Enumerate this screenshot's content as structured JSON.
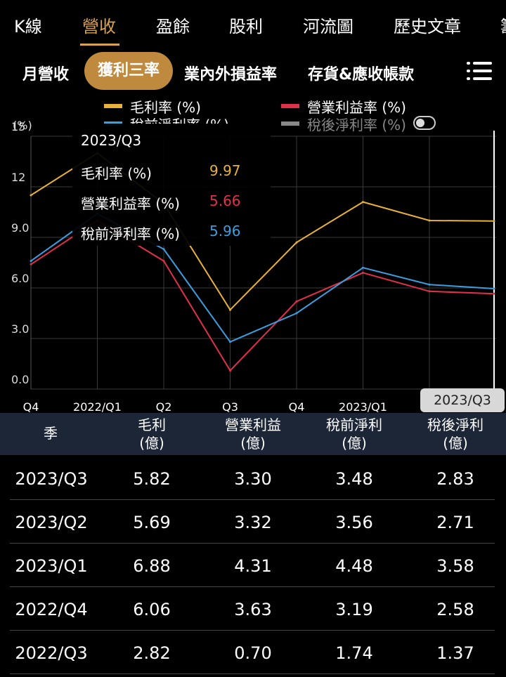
{
  "top_tabs": [
    "K線",
    "營收",
    "盈餘",
    "股利",
    "河流圖",
    "歷史文章",
    "籌"
  ],
  "top_active": "營收",
  "sub_tabs": [
    "月營收",
    "獲利三率",
    "業內外損益率",
    "存貨&應收帳款"
  ],
  "sub_active": "獲利三率",
  "legend": [
    {
      "label": "毛利率 (%)",
      "color": "#e8b23a"
    },
    {
      "label": "營業利益率 (%)",
      "color": "#e0304a"
    },
    {
      "label": "稅前淨利率 (%)",
      "color": "#3b9ee0"
    },
    {
      "label": "稅後淨利率 (%)",
      "color": "#888888"
    }
  ],
  "chart_data": {
    "type": "line",
    "ylabel": "(%)",
    "ylim": [
      0,
      15
    ],
    "yticks": [
      "0.0",
      "3.0",
      "6.0",
      "9.0",
      "12",
      "15"
    ],
    "x_labels": [
      "Q4",
      "2022/Q1",
      "Q2",
      "Q3",
      "Q4",
      "2023/Q1",
      "Q2"
    ],
    "categories": [
      "2021/Q4",
      "2022/Q1",
      "2022/Q2",
      "2022/Q3",
      "2022/Q4",
      "2023/Q1",
      "2023/Q2",
      "2023/Q3"
    ],
    "series": [
      {
        "name": "毛利率 (%)",
        "color": "#e8b23a",
        "values": [
          11.5,
          14.0,
          11.0,
          4.7,
          8.7,
          11.1,
          10.0,
          9.97
        ]
      },
      {
        "name": "營業利益率 (%)",
        "color": "#e0304a",
        "values": [
          7.4,
          10.0,
          7.6,
          1.1,
          5.2,
          6.9,
          5.8,
          5.66
        ]
      },
      {
        "name": "稅前淨利率 (%)",
        "color": "#3b9ee0",
        "values": [
          7.6,
          10.4,
          8.3,
          2.8,
          4.5,
          7.2,
          6.2,
          5.96
        ]
      }
    ],
    "grid": true
  },
  "tooltip": {
    "title": "2023/Q3",
    "rows": [
      {
        "label": "毛利率 (%)",
        "value": "9.97",
        "color": "#e8b23a"
      },
      {
        "label": "營業利益率 (%)",
        "value": "5.66",
        "color": "#e0304a"
      },
      {
        "label": "稅前淨利率 (%)",
        "value": "5.96",
        "color": "#3b9ee0"
      }
    ]
  },
  "current_label": "2023/Q3",
  "table": {
    "headers": [
      {
        "line1": "季",
        "line2": ""
      },
      {
        "line1": "毛利",
        "line2": "(億)"
      },
      {
        "line1": "營業利益",
        "line2": "(億)"
      },
      {
        "line1": "稅前淨利",
        "line2": "(億)"
      },
      {
        "line1": "稅後淨利",
        "line2": "(億)"
      }
    ],
    "rows": [
      [
        "2023/Q3",
        "5.82",
        "3.30",
        "3.48",
        "2.83"
      ],
      [
        "2023/Q2",
        "5.69",
        "3.32",
        "3.56",
        "2.71"
      ],
      [
        "2023/Q1",
        "6.88",
        "4.31",
        "4.48",
        "3.58"
      ],
      [
        "2022/Q4",
        "6.06",
        "3.63",
        "3.19",
        "2.58"
      ],
      [
        "2022/Q3",
        "2.82",
        "0.70",
        "1.74",
        "1.37"
      ]
    ]
  }
}
